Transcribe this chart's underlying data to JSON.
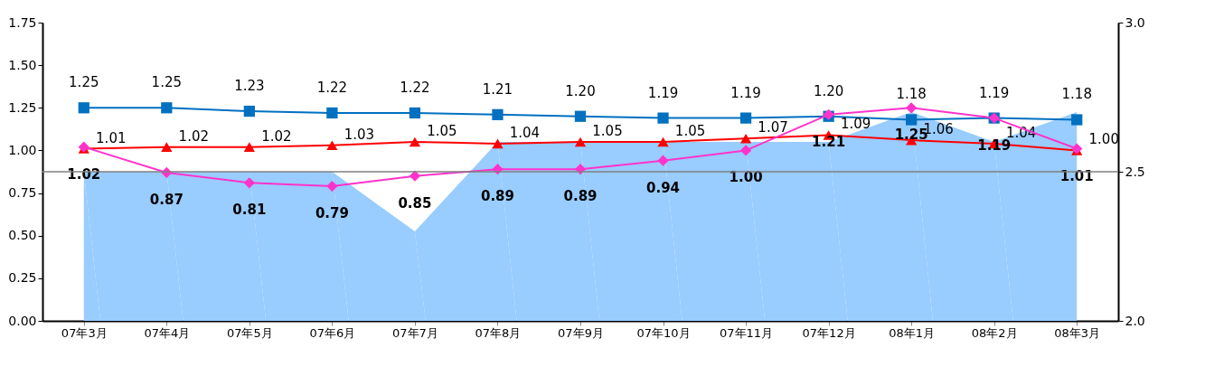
{
  "chart_data": {
    "type": "line",
    "categories": [
      "07年3月",
      "07年4月",
      "07年5月",
      "07年6月",
      "07年7月",
      "07年8月",
      "07年9月",
      "07年10月",
      "07年11月",
      "07年12月",
      "08年1月",
      "08年2月",
      "08年3月"
    ],
    "ylim": [
      0,
      1.75
    ],
    "yticks": [
      {
        "value": 0,
        "label": "0.00"
      },
      {
        "value": 0.25,
        "label": "0.25"
      },
      {
        "value": 0.5,
        "label": "0.50"
      },
      {
        "value": 0.75,
        "label": "0.75"
      },
      {
        "value": 1,
        "label": "1.00"
      },
      {
        "value": 1.25,
        "label": "1.25"
      },
      {
        "value": 1.5,
        "label": "1.50"
      },
      {
        "value": 1.75,
        "label": "1.75"
      }
    ],
    "y2lim": [
      2.0,
      3.0
    ],
    "y2ticks": [
      {
        "value": 2,
        "label": "2.0"
      },
      {
        "value": 2.5,
        "label": "2.5"
      },
      {
        "value": 3,
        "label": "3.0"
      }
    ],
    "line_style": "solid",
    "ref_lines": [
      {
        "axis": "y2",
        "value": 2.5,
        "color": "#808080"
      }
    ],
    "series": [
      {
        "type": "area",
        "axis": "y2",
        "color": "#99ccff",
        "values": [
          2.5,
          2.5,
          2.5,
          2.5,
          2.3,
          2.6,
          2.6,
          2.6,
          2.6,
          2.6,
          2.7,
          2.6,
          2.7
        ]
      },
      {
        "color": "#0070c0",
        "marker": "square",
        "values": [
          1.25,
          1.25,
          1.23,
          1.22,
          1.22,
          1.21,
          1.2,
          1.19,
          1.19,
          1.2,
          1.18,
          1.19,
          1.18
        ],
        "value_labels": [
          "1.25",
          "1.25",
          "1.23",
          "1.22",
          "1.22",
          "1.21",
          "1.20",
          "1.19",
          "1.19",
          "1.20",
          "1.18",
          "1.19",
          "1.18"
        ]
      },
      {
        "color": "#ff0000",
        "marker": "triangle",
        "values": [
          1.01,
          1.02,
          1.02,
          1.03,
          1.05,
          1.04,
          1.05,
          1.05,
          1.07,
          1.09,
          1.06,
          1.04,
          1.0
        ],
        "value_labels": [
          "1.01",
          "1.02",
          "1.02",
          "1.03",
          "1.05",
          "1.04",
          "1.05",
          "1.05",
          "1.07",
          "1.09",
          "1.06",
          "1.04",
          "1.00"
        ]
      },
      {
        "color": "#ff33cc",
        "marker": "diamond",
        "values": [
          1.02,
          0.87,
          0.81,
          0.79,
          0.85,
          0.89,
          0.89,
          0.94,
          1.0,
          1.21,
          1.25,
          1.19,
          1.01
        ],
        "value_labels": [
          "1.02",
          "0.87",
          "0.81",
          "0.79",
          "0.85",
          "0.89",
          "0.89",
          "0.94",
          "1.00",
          "1.21",
          "1.25",
          "1.19",
          "1.01"
        ]
      }
    ]
  }
}
